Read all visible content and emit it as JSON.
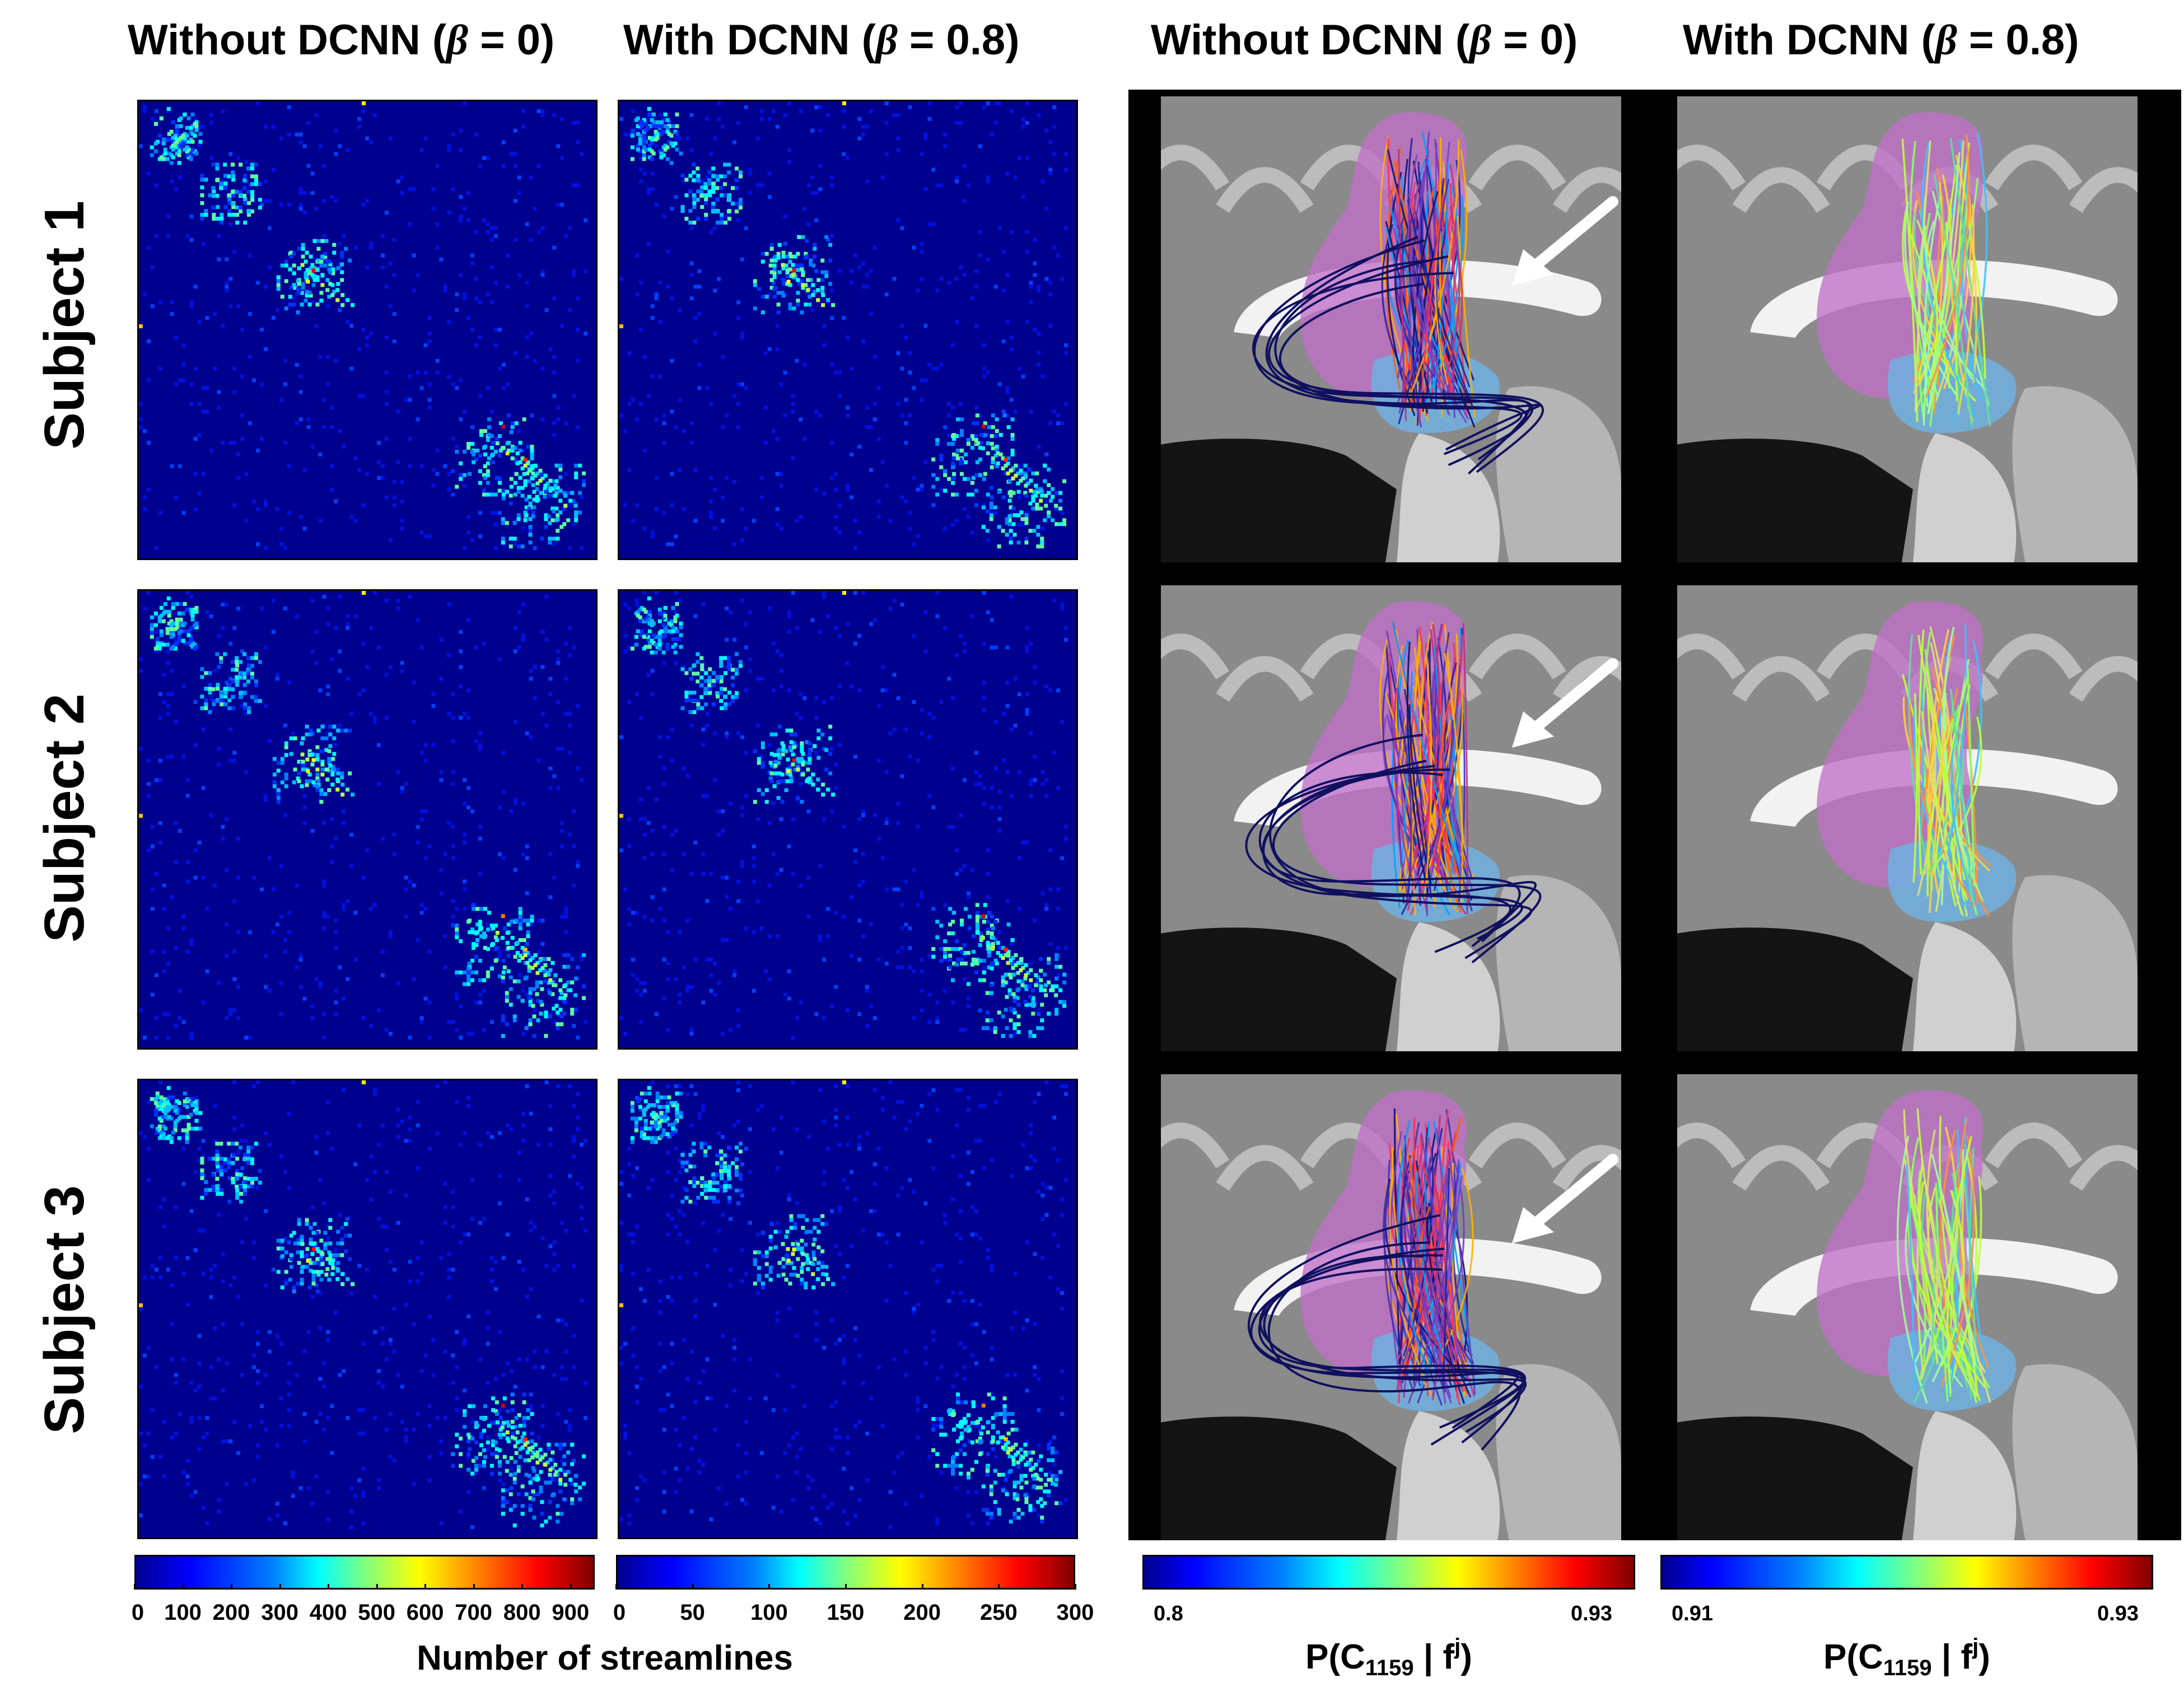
{
  "column_titles": {
    "left_without": {
      "prefix": "Without DCNN (",
      "beta": "β",
      "suffix": " = 0)"
    },
    "left_with": {
      "prefix": "With DCNN (",
      "beta": "β",
      "suffix": " = 0.8)"
    },
    "right_without": {
      "prefix": "Without DCNN (",
      "beta": "β",
      "suffix": " = 0)"
    },
    "right_with": {
      "prefix": "With DCNN (",
      "beta": "β",
      "suffix": " = 0.8)"
    }
  },
  "rows": [
    {
      "label": "Subject 1"
    },
    {
      "label": "Subject 2"
    },
    {
      "label": "Subject 3"
    }
  ],
  "colorbars": {
    "streamlines_without": {
      "ticks": [
        "0",
        "100",
        "200",
        "300",
        "400",
        "500",
        "600",
        "700",
        "800",
        "900"
      ],
      "max": 950
    },
    "streamlines_with": {
      "ticks": [
        "0",
        "50",
        "100",
        "150",
        "200",
        "250",
        "300"
      ],
      "max": 300
    },
    "streamlines_title": "Number of streamlines",
    "prob_without": {
      "min": "0.8",
      "max": "0.93"
    },
    "prob_with": {
      "min": "0.91",
      "max": "0.93"
    },
    "prob_title": {
      "prefix": "P(C",
      "sub": "1159",
      "mid": " | f",
      "sup": "j",
      "suffix": ")"
    }
  },
  "colors": {
    "matrix_background": "#00008f",
    "gyrus_magenta": "#c070c8",
    "thalamus_blue": "#6fb0e0",
    "arrow": "#ffffff",
    "panel_background": "#000000"
  },
  "icons": {
    "arrow": "arrow-icon"
  }
}
